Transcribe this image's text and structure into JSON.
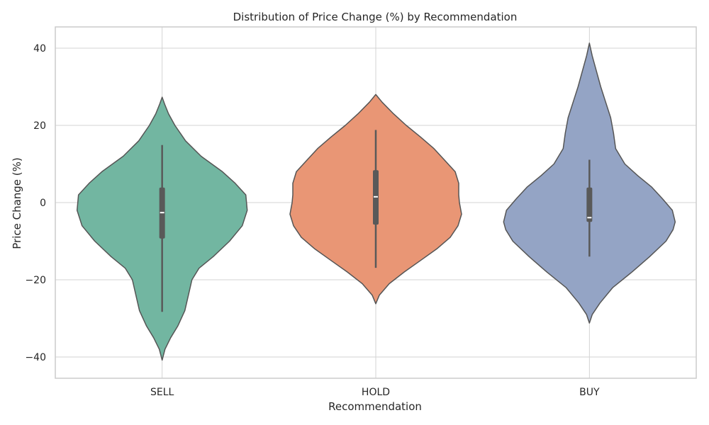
{
  "chart_data": {
    "type": "violin",
    "title": "Distribution of Price Change (%) by Recommendation",
    "xlabel": "Recommendation",
    "ylabel": "Price Change (%)",
    "ylim": [
      -45.5,
      45.5
    ],
    "yticks": [
      -40,
      -20,
      0,
      20,
      40
    ],
    "ytick_labels": [
      "−40",
      "−20",
      "0",
      "20",
      "40"
    ],
    "grid": true,
    "categories": [
      "SELL",
      "HOLD",
      "BUY"
    ],
    "series": [
      {
        "category": "SELL",
        "color": "#72b6a1",
        "min": -40.8,
        "max": 27.3,
        "whisker_low": -28.3,
        "whisker_high": 14.9,
        "q1": -9.3,
        "median": -2.6,
        "q3": 3.9,
        "density": [
          [
            -40.8,
            0.0
          ],
          [
            -38,
            4
          ],
          [
            -35,
            12
          ],
          [
            -32,
            22
          ],
          [
            -28,
            32
          ],
          [
            -24,
            37
          ],
          [
            -20,
            42
          ],
          [
            -17,
            52
          ],
          [
            -14,
            72
          ],
          [
            -10,
            95
          ],
          [
            -6,
            113
          ],
          [
            -2,
            120
          ],
          [
            2,
            118
          ],
          [
            5,
            103
          ],
          [
            8,
            85
          ],
          [
            12,
            55
          ],
          [
            16,
            33
          ],
          [
            20,
            18
          ],
          [
            23,
            9
          ],
          [
            25.5,
            3.5
          ],
          [
            27.3,
            0.0
          ]
        ]
      },
      {
        "category": "HOLD",
        "color": "#e99675",
        "min": -26.2,
        "max": 28.0,
        "whisker_low": -16.9,
        "whisker_high": 18.8,
        "q1": -5.7,
        "median": 1.5,
        "q3": 8.4,
        "density": [
          [
            -26.2,
            0.0
          ],
          [
            -24,
            5
          ],
          [
            -21,
            19
          ],
          [
            -18,
            40
          ],
          [
            -15,
            63
          ],
          [
            -12,
            86
          ],
          [
            -9,
            105
          ],
          [
            -6,
            116
          ],
          [
            -3,
            121
          ],
          [
            0,
            118
          ],
          [
            2,
            117
          ],
          [
            5,
            117
          ],
          [
            8,
            112
          ],
          [
            11,
            97
          ],
          [
            14,
            82
          ],
          [
            17,
            63
          ],
          [
            20,
            43
          ],
          [
            23,
            25
          ],
          [
            26,
            9
          ],
          [
            28.0,
            0.0
          ]
        ]
      },
      {
        "category": "BUY",
        "color": "#94a4c5",
        "min": -31.2,
        "max": 41.3,
        "whisker_low": -14.0,
        "whisker_high": 11.1,
        "q1": -5.0,
        "median": -3.9,
        "q3": 3.9,
        "density": [
          [
            -31.2,
            0.0
          ],
          [
            -29,
            4
          ],
          [
            -26,
            15
          ],
          [
            -22,
            33
          ],
          [
            -18,
            60
          ],
          [
            -14,
            85
          ],
          [
            -10,
            108
          ],
          [
            -7,
            118
          ],
          [
            -5,
            121
          ],
          [
            -2,
            117
          ],
          [
            1,
            103
          ],
          [
            4,
            88
          ],
          [
            7,
            68
          ],
          [
            10,
            50
          ],
          [
            14,
            37
          ],
          [
            18,
            34
          ],
          [
            22,
            30
          ],
          [
            26,
            23
          ],
          [
            30,
            16
          ],
          [
            34,
            10
          ],
          [
            38,
            4
          ],
          [
            41.3,
            0.0
          ]
        ]
      }
    ]
  }
}
